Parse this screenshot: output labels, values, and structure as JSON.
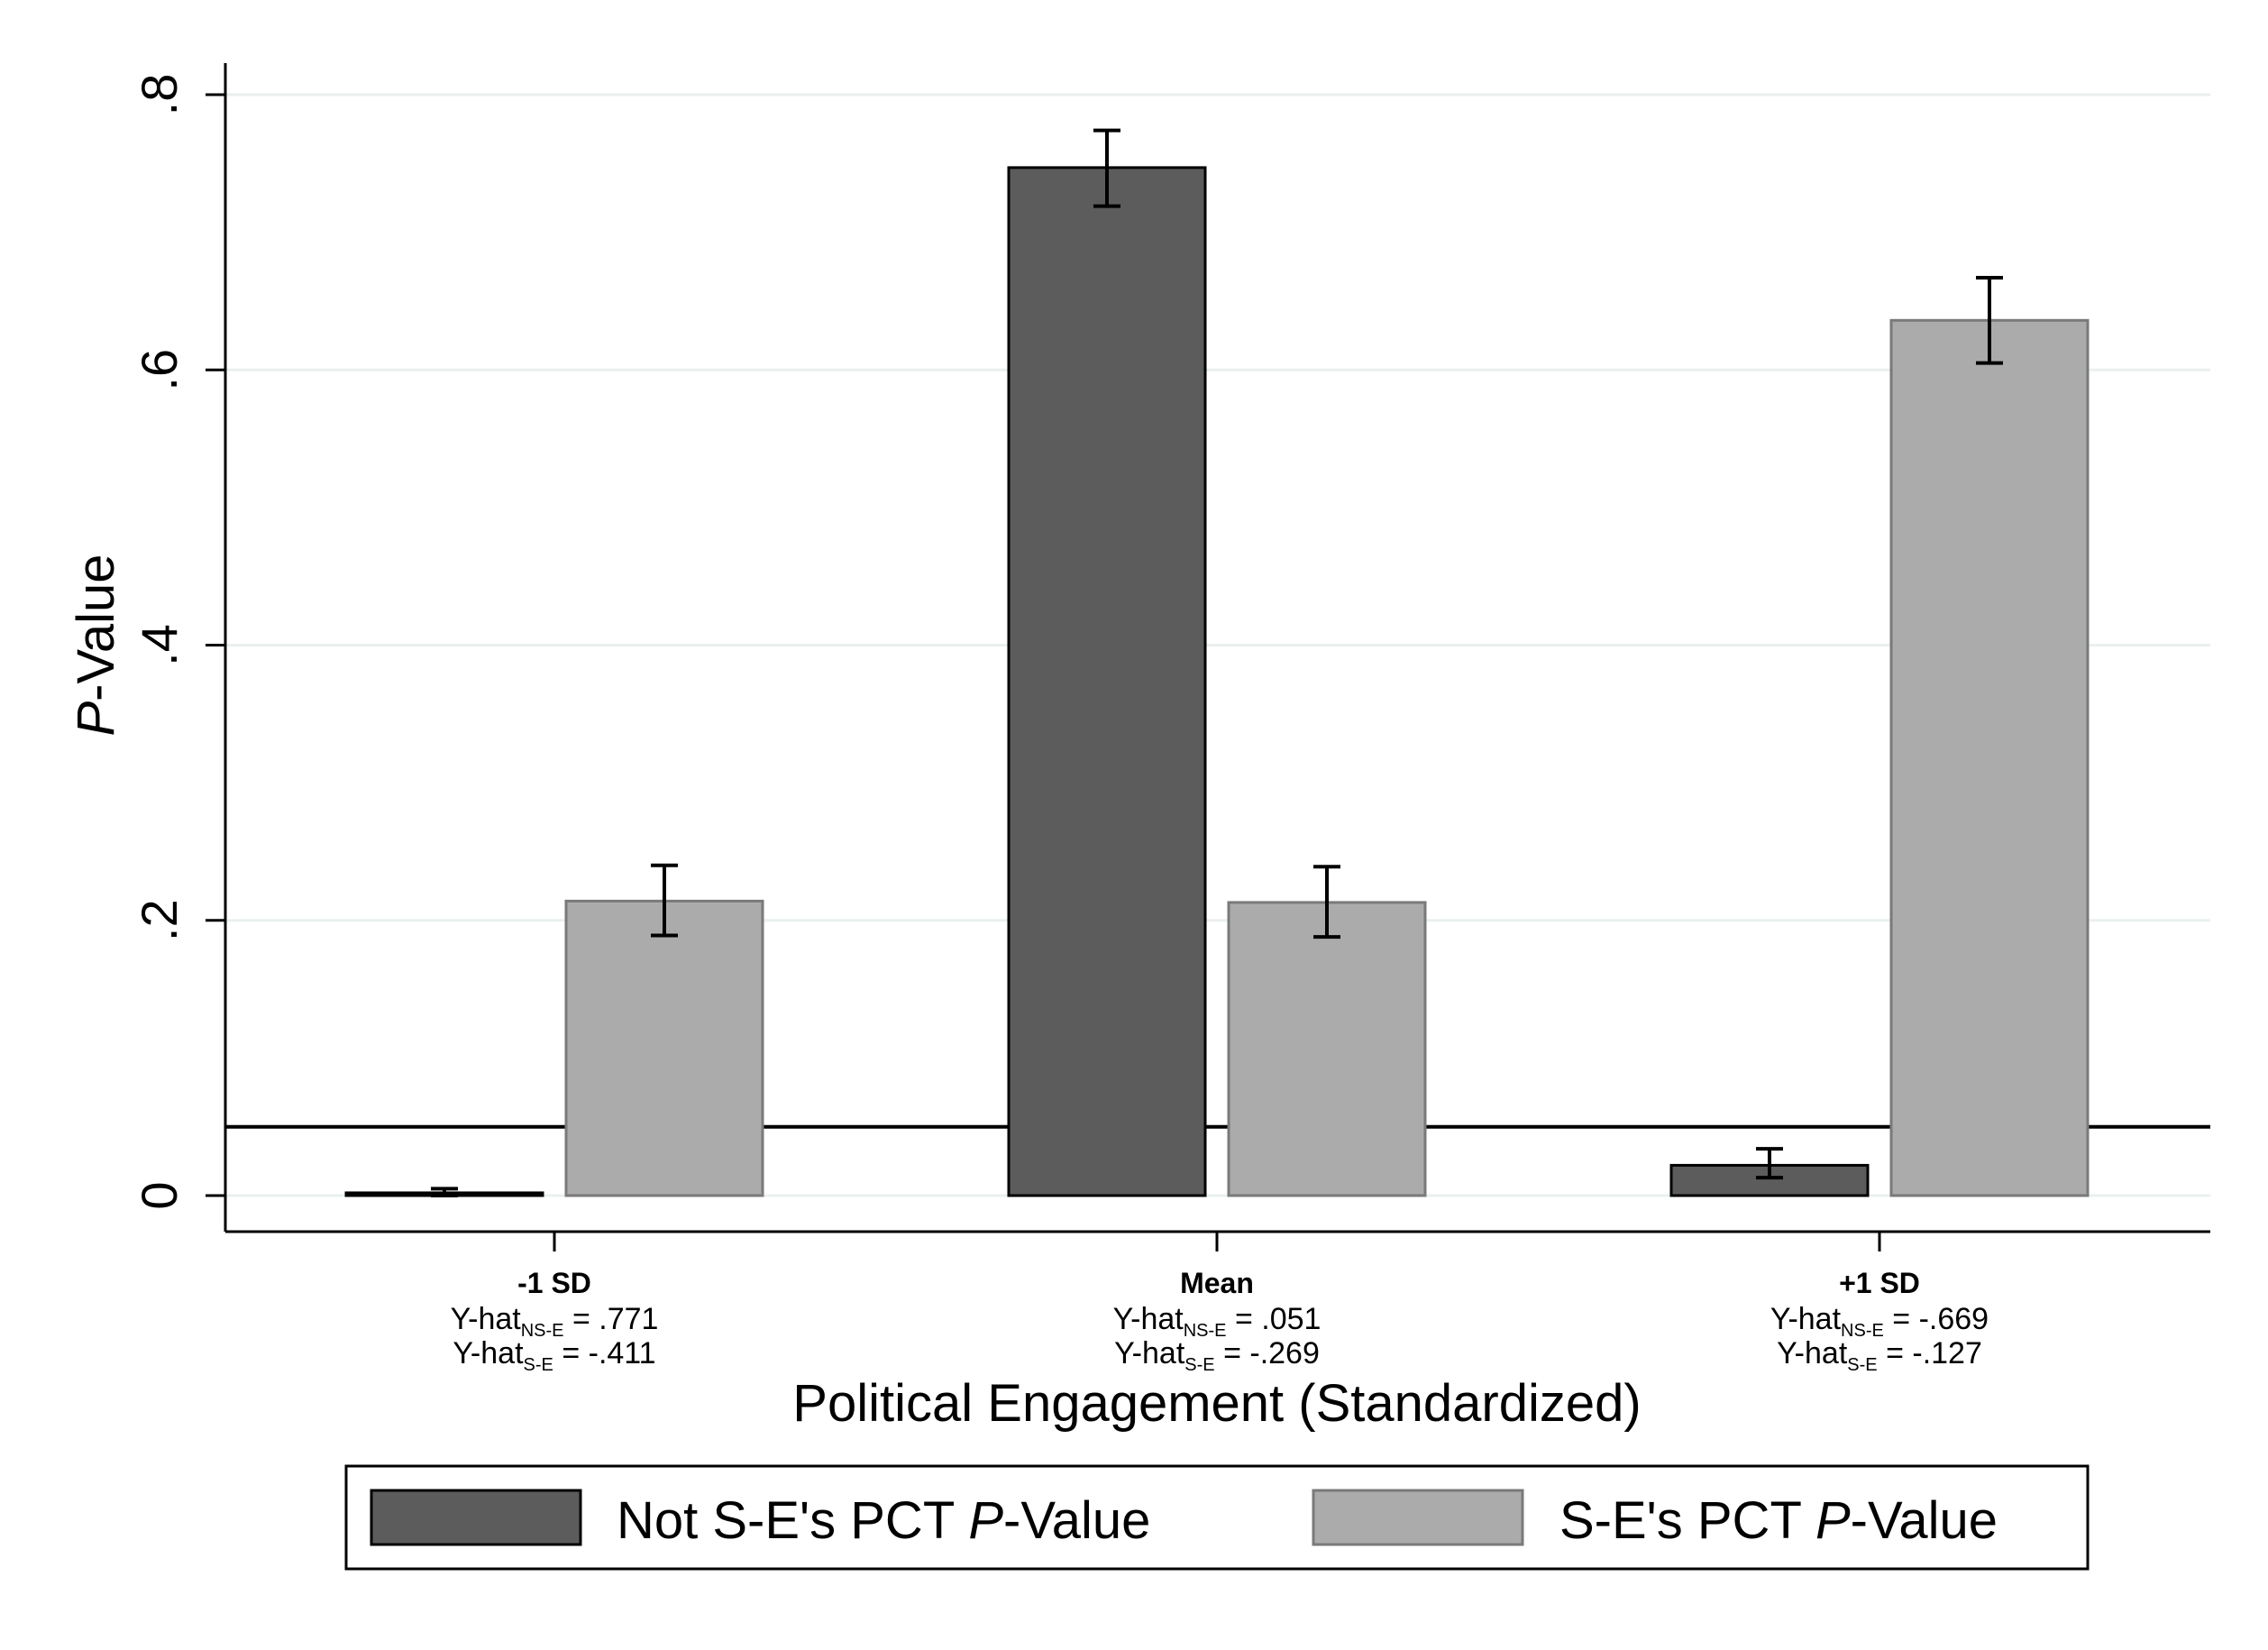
{
  "colors": {
    "series_dark": "#5c5c5c",
    "series_light": "#ababab",
    "series_dark_stroke": "#000000",
    "series_light_stroke": "#7a7a7a",
    "grid": "#eaf0f0",
    "axis": "#000000"
  },
  "chart_data": {
    "type": "bar",
    "title": "",
    "ylabel_italic": "P",
    "ylabel_rest": "-Value",
    "xlabel": "Political Engagement (Standardized)",
    "ylim": [
      0,
      0.8
    ],
    "yticks": [
      0,
      0.2,
      0.4,
      0.6,
      0.8
    ],
    "ytick_labels": [
      "0",
      ".2",
      ".4",
      ".6",
      ".8"
    ],
    "grid": true,
    "reference_line": 0.05,
    "categories": [
      {
        "name": "-1 SD",
        "note1_pre": "Y-hat",
        "note1_sub": "NS-E",
        "note1_post": " = .771",
        "note2_pre": "Y-hat",
        "note2_sub": "S-E",
        "note2_post": " = -.411"
      },
      {
        "name": "Mean",
        "note1_pre": "Y-hat",
        "note1_sub": "NS-E",
        "note1_post": " = .051",
        "note2_pre": "Y-hat",
        "note2_sub": "S-E",
        "note2_post": " = -.269"
      },
      {
        "name": "+1 SD",
        "note1_pre": "Y-hat",
        "note1_sub": "NS-E",
        "note1_post": " = -.669",
        "note2_pre": "Y-hat",
        "note2_sub": "S-E",
        "note2_post": " = -.127"
      }
    ],
    "series": [
      {
        "legend_pre": "Not S-E's PCT ",
        "legend_italic": "P",
        "legend_post": "-Value",
        "values": [
          0.002,
          0.747,
          0.022
        ],
        "ci_low": [
          0.0,
          0.719,
          0.013
        ],
        "ci_high": [
          0.005,
          0.774,
          0.034
        ]
      },
      {
        "legend_pre": "S-E's PCT ",
        "legend_italic": "P",
        "legend_post": "-Value",
        "values": [
          0.214,
          0.213,
          0.636
        ],
        "ci_low": [
          0.189,
          0.188,
          0.605
        ],
        "ci_high": [
          0.24,
          0.239,
          0.667
        ]
      }
    ],
    "legend_position": "bottom"
  }
}
